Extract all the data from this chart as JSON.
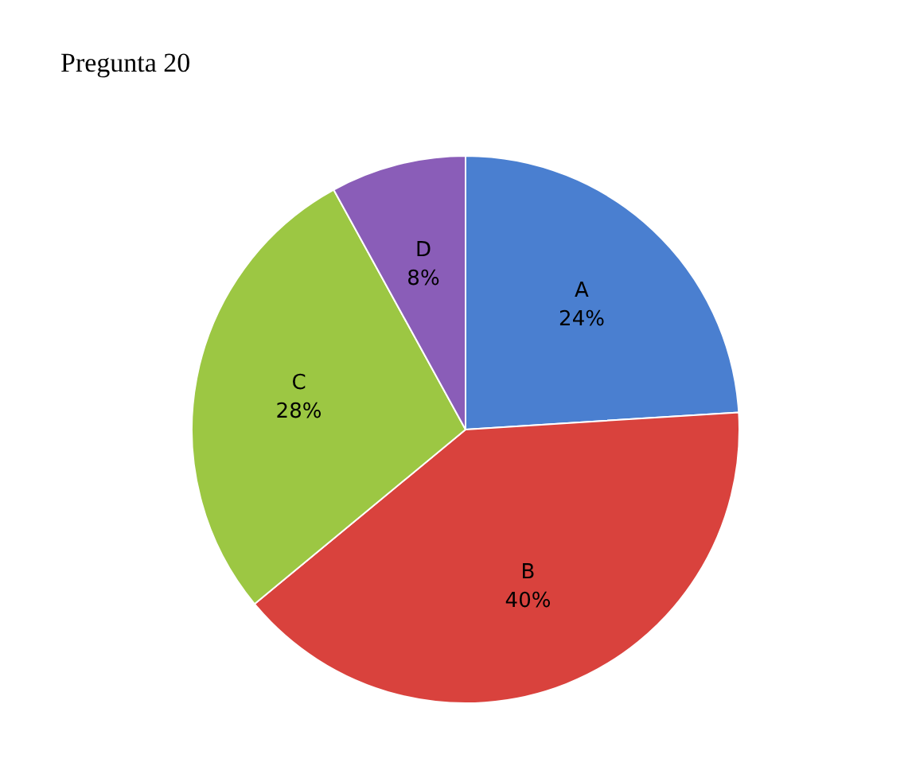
{
  "chart_data": {
    "type": "pie",
    "title": "Pregunta 20",
    "categories": [
      "A",
      "B",
      "C",
      "D"
    ],
    "values": [
      24,
      40,
      28,
      8
    ],
    "value_labels": [
      "24%",
      "40%",
      "28%",
      "8%"
    ],
    "colors": [
      "#4a7fd0",
      "#d9423d",
      "#9cc743",
      "#8a5db8"
    ],
    "legend": false
  }
}
